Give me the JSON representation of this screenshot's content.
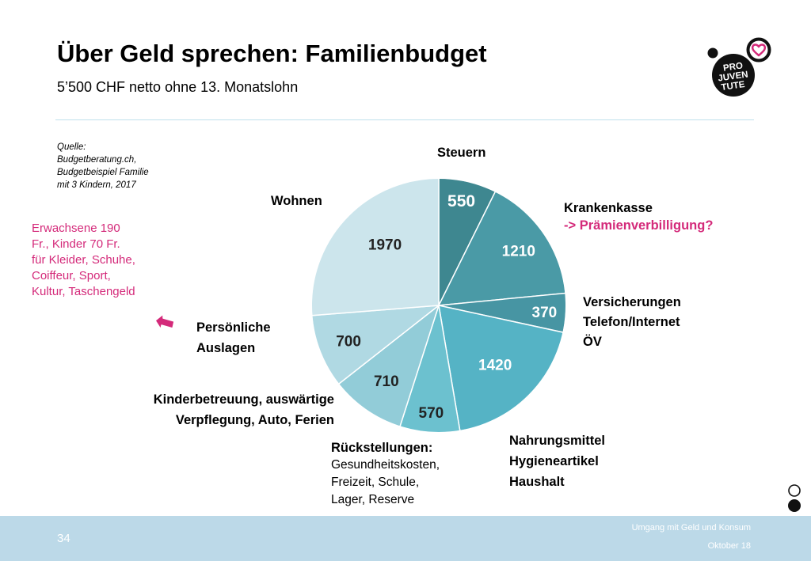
{
  "title": "Über Geld sprechen: Familienbudget",
  "subtitle": "5’500 CHF netto ohne 13. Monatslohn",
  "source": [
    "Quelle:",
    "Budgetberatung.ch,",
    "Budgetbeispiel Familie",
    "mit 3 Kindern, 2017"
  ],
  "labels": {
    "steuern": "Steuern",
    "krankenkasse": "Krankenkasse",
    "praemien": "-> Prämienverbilligung?",
    "versicherungen": [
      "Versicherungen",
      "Telefon/Internet",
      "ÖV"
    ],
    "nahrung": [
      "Nahrungsmittel",
      "Hygieneartikel",
      "Haushalt"
    ],
    "rueck_title": "Rückstellungen:",
    "rueck_lines": [
      "Gesundheitskosten,",
      "Freizeit, Schule,",
      "Lager, Reserve"
    ],
    "kinder": [
      "Kinderbetreuung, auswärtige",
      "Verpflegung, Auto, Ferien"
    ],
    "persoenlich": [
      "Persönliche",
      "Auslagen"
    ],
    "wohnen": "Wohnen"
  },
  "pink_note": [
    "Erwachsene 190",
    "Fr., Kinder 70 Fr.",
    "für Kleider, Schuhe,",
    "Coiffeur, Sport,",
    "Kultur, Taschengeld"
  ],
  "logo_text": [
    "PRO",
    "JUVEN",
    "TUTE"
  ],
  "footer": {
    "page": "34",
    "topic": "Umgang mit Geld und Konsum",
    "date": "Oktober 18"
  },
  "colors": {
    "pink": "#d42a7a",
    "footer": "#bcd9e8"
  },
  "chart_data": {
    "type": "pie",
    "title": "",
    "slices": [
      {
        "value": 550,
        "color": "#3e8790"
      },
      {
        "value": 1210,
        "color": "#4a9aa6"
      },
      {
        "value": 370,
        "color": "#4795a3"
      },
      {
        "value": 1420,
        "color": "#55b3c5"
      },
      {
        "value": 570,
        "color": "#6cc1cf"
      },
      {
        "value": 710,
        "color": "#92ccd8"
      },
      {
        "value": 700,
        "color": "#b0d9e3"
      },
      {
        "value": 1970,
        "color": "#cce5ec"
      }
    ]
  }
}
